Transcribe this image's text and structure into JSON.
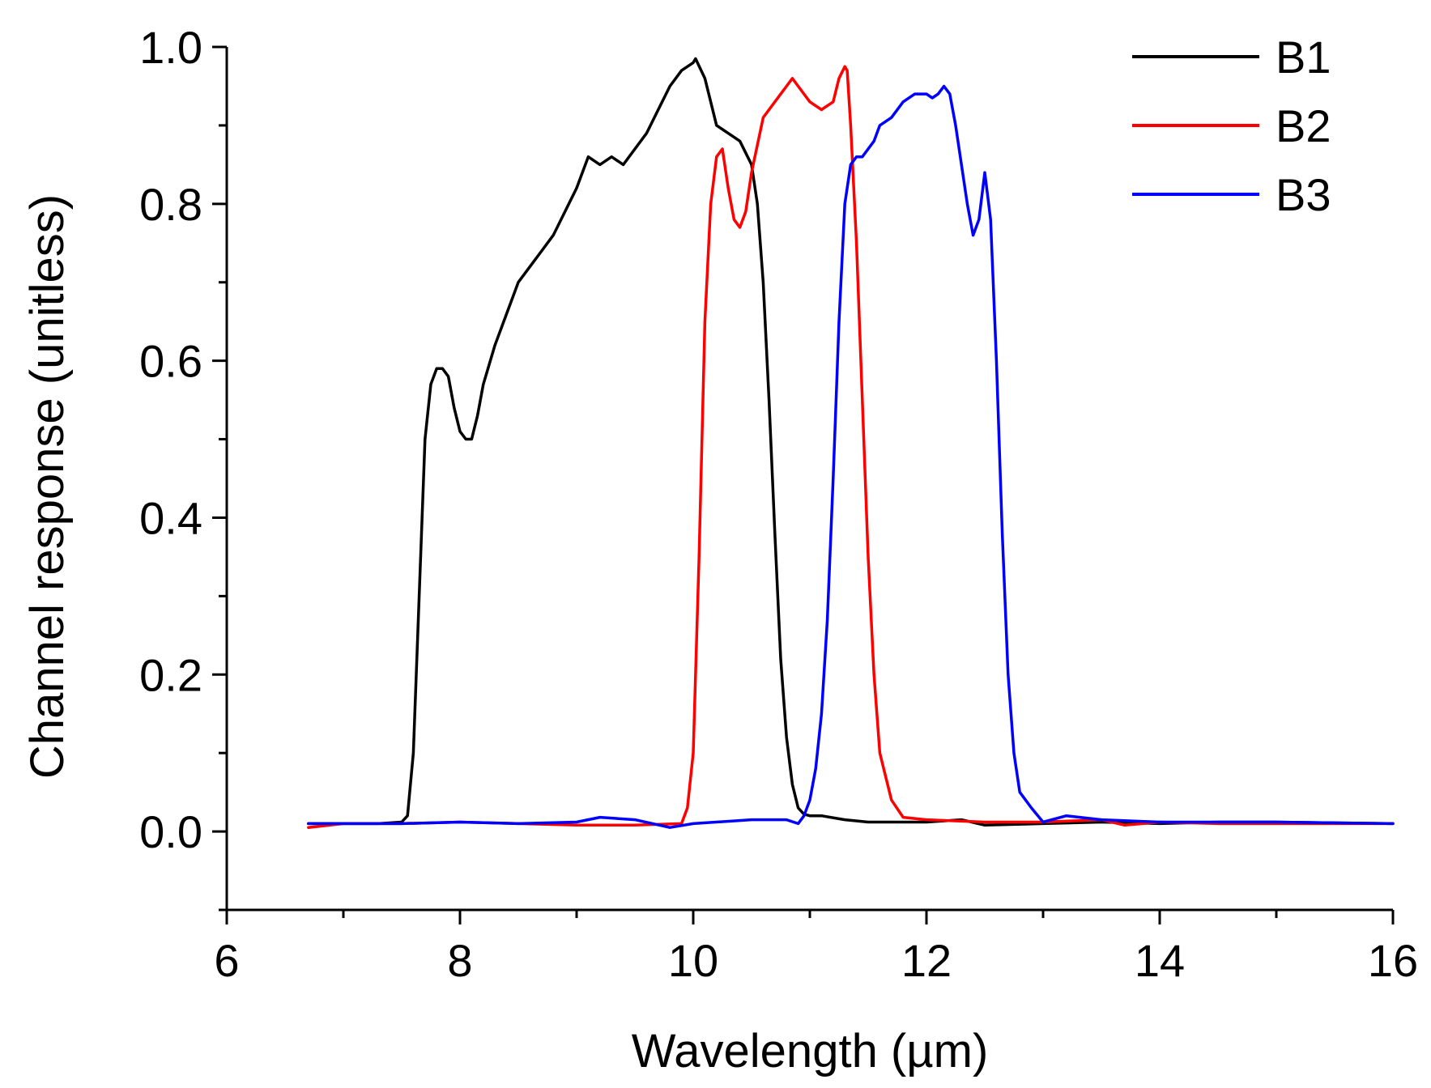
{
  "chart_data": {
    "type": "line",
    "title": "",
    "xlabel": "Wavelength (µm)",
    "ylabel": "Channel response (unitless)",
    "xlim": [
      6,
      16
    ],
    "ylim": [
      -0.1,
      1.0
    ],
    "x_ticks": [
      "6",
      "8",
      "10",
      "12",
      "14",
      "16"
    ],
    "x_tick_values": [
      6,
      8,
      10,
      12,
      14,
      16
    ],
    "y_ticks": [
      "0.0",
      "0.2",
      "0.4",
      "0.6",
      "0.8",
      "1.0"
    ],
    "y_tick_values": [
      0.0,
      0.2,
      0.4,
      0.6,
      0.8,
      1.0
    ],
    "grid": false,
    "legend_position": "top-right",
    "series": [
      {
        "name": "B1",
        "color": "#000000",
        "x": [
          6.7,
          7.0,
          7.3,
          7.5,
          7.55,
          7.6,
          7.65,
          7.7,
          7.75,
          7.8,
          7.85,
          7.9,
          7.95,
          8.0,
          8.05,
          8.1,
          8.15,
          8.2,
          8.3,
          8.4,
          8.5,
          8.6,
          8.7,
          8.8,
          8.9,
          9.0,
          9.1,
          9.2,
          9.3,
          9.4,
          9.5,
          9.6,
          9.7,
          9.8,
          9.9,
          10.0,
          10.02,
          10.1,
          10.15,
          10.2,
          10.3,
          10.4,
          10.5,
          10.55,
          10.6,
          10.65,
          10.7,
          10.75,
          10.8,
          10.85,
          10.9,
          10.95,
          11.0,
          11.1,
          11.3,
          11.5,
          12.0,
          12.3,
          12.5,
          13.0,
          13.5,
          14.0,
          14.5,
          15.0,
          16.0
        ],
        "y": [
          0.01,
          0.01,
          0.01,
          0.012,
          0.02,
          0.1,
          0.3,
          0.5,
          0.57,
          0.59,
          0.59,
          0.58,
          0.54,
          0.51,
          0.5,
          0.5,
          0.53,
          0.57,
          0.62,
          0.66,
          0.7,
          0.72,
          0.74,
          0.76,
          0.79,
          0.82,
          0.86,
          0.85,
          0.86,
          0.85,
          0.87,
          0.89,
          0.92,
          0.95,
          0.97,
          0.98,
          0.985,
          0.96,
          0.93,
          0.9,
          0.89,
          0.88,
          0.85,
          0.8,
          0.7,
          0.55,
          0.38,
          0.22,
          0.12,
          0.06,
          0.03,
          0.022,
          0.02,
          0.02,
          0.015,
          0.012,
          0.012,
          0.015,
          0.008,
          0.01,
          0.012,
          0.01,
          0.012,
          0.012,
          0.01
        ]
      },
      {
        "name": "B2",
        "color": "#ff0000",
        "x": [
          6.7,
          7.0,
          7.5,
          8.0,
          8.5,
          9.0,
          9.5,
          9.9,
          9.95,
          10.0,
          10.05,
          10.1,
          10.15,
          10.2,
          10.25,
          10.3,
          10.35,
          10.4,
          10.45,
          10.5,
          10.6,
          10.7,
          10.8,
          10.85,
          10.9,
          11.0,
          11.1,
          11.2,
          11.25,
          11.3,
          11.32,
          11.35,
          11.4,
          11.45,
          11.5,
          11.55,
          11.6,
          11.7,
          11.8,
          12.0,
          12.5,
          13.0,
          13.5,
          13.7,
          14.0,
          14.5,
          15.0,
          16.0
        ],
        "y": [
          0.005,
          0.01,
          0.01,
          0.012,
          0.01,
          0.008,
          0.008,
          0.01,
          0.03,
          0.1,
          0.35,
          0.65,
          0.8,
          0.86,
          0.87,
          0.82,
          0.78,
          0.77,
          0.79,
          0.84,
          0.91,
          0.93,
          0.95,
          0.96,
          0.95,
          0.93,
          0.92,
          0.93,
          0.96,
          0.975,
          0.97,
          0.9,
          0.75,
          0.55,
          0.35,
          0.2,
          0.1,
          0.04,
          0.018,
          0.015,
          0.012,
          0.012,
          0.015,
          0.008,
          0.012,
          0.01,
          0.01,
          0.01
        ]
      },
      {
        "name": "B3",
        "color": "#0000ff",
        "x": [
          6.7,
          7.0,
          7.5,
          8.0,
          8.5,
          9.0,
          9.2,
          9.5,
          9.8,
          10.0,
          10.5,
          10.8,
          10.9,
          10.95,
          11.0,
          11.05,
          11.1,
          11.15,
          11.2,
          11.25,
          11.3,
          11.35,
          11.4,
          11.45,
          11.5,
          11.55,
          11.6,
          11.7,
          11.8,
          11.9,
          12.0,
          12.05,
          12.1,
          12.15,
          12.2,
          12.25,
          12.3,
          12.35,
          12.4,
          12.45,
          12.5,
          12.55,
          12.6,
          12.65,
          12.7,
          12.75,
          12.8,
          12.9,
          13.0,
          13.2,
          13.5,
          14.0,
          14.5,
          15.0,
          16.0
        ],
        "y": [
          0.01,
          0.01,
          0.01,
          0.012,
          0.01,
          0.012,
          0.018,
          0.015,
          0.005,
          0.01,
          0.015,
          0.015,
          0.01,
          0.02,
          0.04,
          0.08,
          0.15,
          0.27,
          0.45,
          0.65,
          0.8,
          0.85,
          0.86,
          0.86,
          0.87,
          0.88,
          0.9,
          0.91,
          0.93,
          0.94,
          0.94,
          0.935,
          0.94,
          0.95,
          0.94,
          0.9,
          0.85,
          0.8,
          0.76,
          0.78,
          0.84,
          0.78,
          0.6,
          0.38,
          0.2,
          0.1,
          0.05,
          0.03,
          0.012,
          0.02,
          0.015,
          0.012,
          0.012,
          0.012,
          0.01
        ]
      }
    ]
  }
}
